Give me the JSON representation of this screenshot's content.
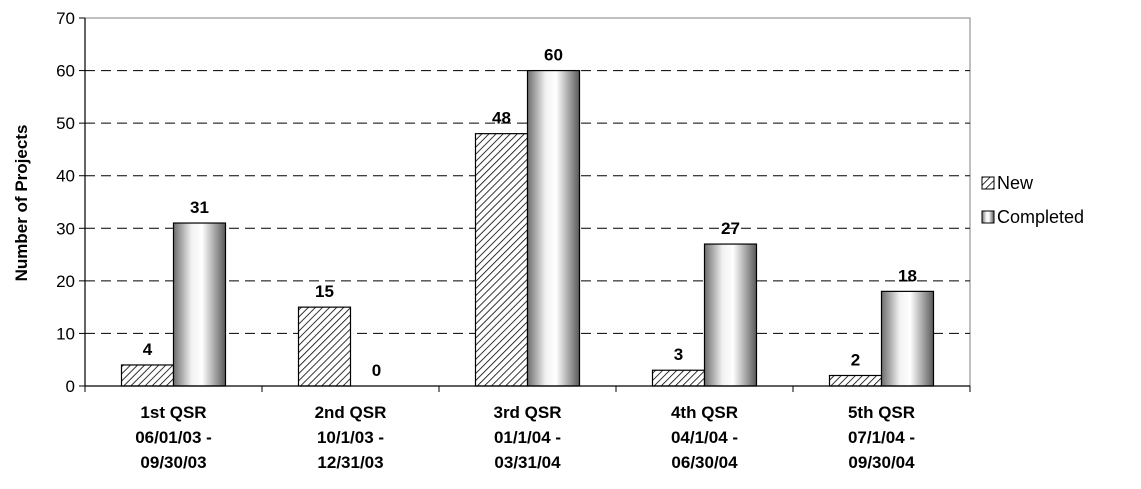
{
  "chart_data": {
    "type": "bar",
    "ylabel": "Number of Projects",
    "ylim": [
      0,
      70
    ],
    "yticks": [
      0,
      10,
      20,
      30,
      40,
      50,
      60,
      70
    ],
    "grid": true,
    "legend_position": "right",
    "categories": [
      [
        "1st QSR",
        "06/01/03 -",
        "09/30/03"
      ],
      [
        "2nd QSR",
        "10/1/03 -",
        "12/31/03"
      ],
      [
        "3rd QSR",
        "01/1/04 -",
        "03/31/04"
      ],
      [
        "4th QSR",
        "04/1/04 -",
        "06/30/04"
      ],
      [
        "5th QSR",
        "07/1/04 -",
        "09/30/04"
      ]
    ],
    "series": [
      {
        "name": "New",
        "values": [
          4,
          15,
          48,
          3,
          2
        ],
        "fill": "hatched"
      },
      {
        "name": "Completed",
        "values": [
          31,
          0,
          60,
          27,
          18
        ],
        "fill": "gradient-gray"
      }
    ]
  }
}
